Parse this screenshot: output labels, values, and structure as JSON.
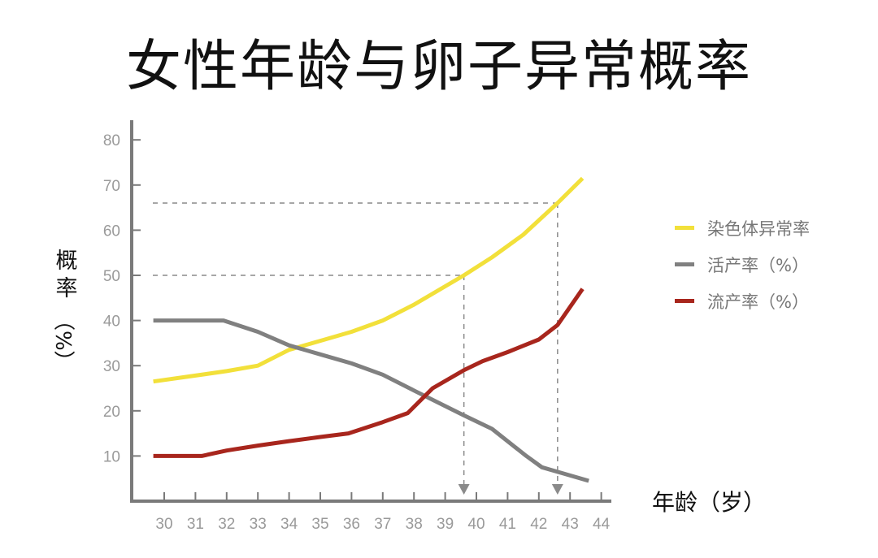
{
  "title": "女性年龄与卵子异常概率",
  "axes": {
    "ylabel_main": "概率",
    "ylabel_unit": "（%）",
    "xlabel": "年龄（岁）"
  },
  "legend": [
    {
      "label": "染色体异常率",
      "color": "#F2E03A"
    },
    {
      "label": "活产率（%）",
      "color": "#808080"
    },
    {
      "label": "流产率（%）",
      "color": "#A8261D"
    }
  ],
  "chart_data": {
    "type": "line",
    "title": "女性年龄与卵子异常概率",
    "xlabel": "年龄（岁）",
    "ylabel": "概率（%）",
    "x_ticks": [
      30,
      31,
      32,
      33,
      34,
      35,
      36,
      37,
      38,
      39,
      40,
      41,
      42,
      43,
      44
    ],
    "y_ticks": [
      10,
      20,
      30,
      40,
      50,
      60,
      70,
      80
    ],
    "ylim": [
      0,
      80
    ],
    "xlim": [
      29,
      45
    ],
    "grid": false,
    "legend_position": "right",
    "series": [
      {
        "name": "染色体异常率",
        "color": "#F2E03A",
        "points": [
          [
            29.65,
            26.5
          ],
          [
            31,
            27.8
          ],
          [
            32,
            28.8
          ],
          [
            33,
            30
          ],
          [
            34,
            33.5
          ],
          [
            35,
            35.5
          ],
          [
            36,
            37.5
          ],
          [
            37,
            40
          ],
          [
            38,
            43.5
          ],
          [
            39.6,
            50
          ],
          [
            40.5,
            54
          ],
          [
            41.5,
            59
          ],
          [
            42.6,
            66
          ],
          [
            43.4,
            71.5
          ]
        ]
      },
      {
        "name": "活产率（%）",
        "color": "#808080",
        "points": [
          [
            29.65,
            40
          ],
          [
            31,
            40
          ],
          [
            31.9,
            40
          ],
          [
            33,
            37.5
          ],
          [
            34,
            34.5
          ],
          [
            35,
            32.5
          ],
          [
            36,
            30.5
          ],
          [
            37,
            28
          ],
          [
            38,
            24.5
          ],
          [
            39.6,
            19
          ],
          [
            40.5,
            16
          ],
          [
            41.6,
            10
          ],
          [
            42.1,
            7.5
          ],
          [
            42.6,
            6.5
          ],
          [
            43.6,
            4.5
          ]
        ]
      },
      {
        "name": "流产率（%）",
        "color": "#A8261D",
        "points": [
          [
            29.65,
            10
          ],
          [
            31.2,
            10
          ],
          [
            32,
            11.2
          ],
          [
            33,
            12.3
          ],
          [
            34,
            13.3
          ],
          [
            35,
            14.2
          ],
          [
            35.9,
            15
          ],
          [
            37,
            17.5
          ],
          [
            37.8,
            19.5
          ],
          [
            38.6,
            25
          ],
          [
            39.6,
            29
          ],
          [
            40.2,
            31
          ],
          [
            41,
            33
          ],
          [
            42,
            35.8
          ],
          [
            42.6,
            39
          ],
          [
            43.4,
            47
          ]
        ]
      }
    ],
    "annotations": [
      {
        "type": "dashed-guide",
        "y": 50,
        "x": 39.6,
        "note": "染色体异常率 50% at ~39.6岁"
      },
      {
        "type": "dashed-guide",
        "y": 66,
        "x": 42.6,
        "note": "染色体异常率 66% at ~42.6岁"
      }
    ]
  }
}
